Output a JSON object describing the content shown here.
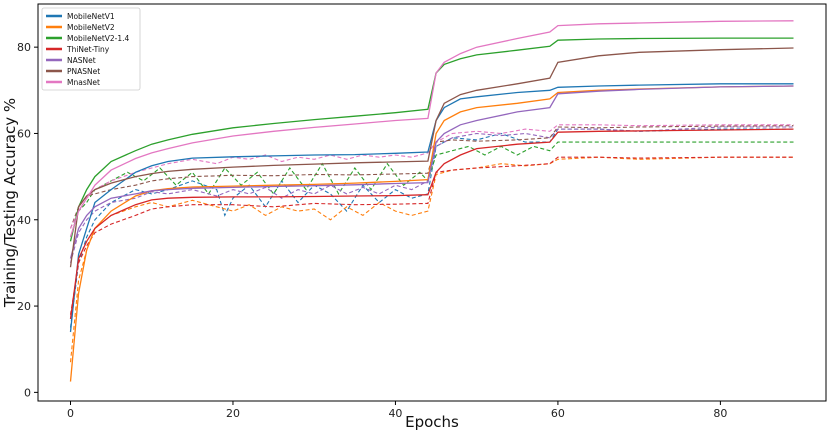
{
  "chart_data": {
    "type": "line",
    "title": "",
    "xlabel": "Epochs",
    "ylabel": "Training/Testing Accuracy %",
    "xlim": [
      -4,
      93
    ],
    "ylim": [
      -2,
      90
    ],
    "xticks": [
      0,
      20,
      40,
      60,
      80
    ],
    "yticks": [
      0,
      20,
      40,
      60,
      80
    ],
    "grid": false,
    "legend_position": "top-left",
    "line_styles": {
      "train": "solid",
      "test": "dashed"
    },
    "series": [
      {
        "name": "MobileNetV1",
        "color": "#1f77b4",
        "train": {
          "x": [
            0,
            1,
            2,
            3,
            5,
            8,
            10,
            12,
            15,
            20,
            25,
            30,
            35,
            40,
            44,
            45,
            46,
            48,
            50,
            55,
            59,
            60,
            65,
            70,
            80,
            89
          ],
          "y": [
            14,
            32,
            38,
            44,
            47,
            51,
            52.5,
            53.5,
            54.3,
            54.6,
            54.8,
            55,
            55.1,
            55.4,
            55.7,
            63,
            66,
            68,
            68.5,
            69.5,
            70,
            70.7,
            71,
            71.2,
            71.5,
            71.5
          ]
        },
        "test": {
          "x": [
            0,
            1,
            2,
            3,
            5,
            8,
            10,
            12,
            15,
            18,
            19,
            20,
            22,
            24,
            26,
            28,
            30,
            32,
            34,
            36,
            38,
            40,
            42,
            44,
            45,
            47,
            50,
            53,
            56,
            59,
            60,
            65,
            70,
            80,
            89
          ],
          "y": [
            15,
            30,
            36,
            40,
            44,
            47,
            46,
            47,
            49,
            47,
            41,
            45,
            48,
            43,
            49,
            44,
            48,
            46,
            42,
            48,
            44,
            47,
            45,
            46,
            57,
            59,
            58.5,
            60,
            58,
            58,
            61,
            61,
            60.5,
            61,
            61
          ]
        }
      },
      {
        "name": "MobileNetV2",
        "color": "#ff7f0e",
        "train": {
          "x": [
            0,
            1,
            2,
            3,
            5,
            8,
            10,
            12,
            15,
            20,
            25,
            30,
            35,
            40,
            44,
            45,
            46,
            48,
            50,
            55,
            59,
            60,
            65,
            70,
            80,
            89
          ],
          "y": [
            2.5,
            23,
            33,
            38,
            42,
            45.5,
            46.7,
            47.2,
            47.6,
            47.8,
            48,
            48.2,
            48.5,
            48.9,
            49.3,
            60,
            63,
            65,
            66,
            67,
            68,
            69.5,
            70,
            70.3,
            70.8,
            71
          ]
        },
        "test": {
          "x": [
            0,
            1,
            2,
            3,
            5,
            8,
            10,
            12,
            15,
            18,
            20,
            22,
            24,
            26,
            28,
            30,
            32,
            34,
            36,
            38,
            40,
            42,
            44,
            45,
            47,
            50,
            53,
            56,
            59,
            60,
            65,
            70,
            80,
            89
          ],
          "y": [
            7,
            26,
            33,
            38,
            41,
            43,
            44,
            43,
            44.5,
            43,
            42,
            43.5,
            41,
            43,
            42,
            42.5,
            40,
            43,
            41,
            44,
            42,
            41,
            42,
            50.5,
            51.5,
            52,
            53,
            52.5,
            53,
            54,
            54.5,
            54,
            54.5,
            54.5
          ]
        }
      },
      {
        "name": "MobileNetV2-1.4",
        "color": "#2ca02c",
        "train": {
          "x": [
            0,
            1,
            2,
            3,
            5,
            8,
            10,
            12,
            15,
            20,
            25,
            30,
            35,
            40,
            44,
            45,
            46,
            48,
            50,
            55,
            59,
            60,
            65,
            70,
            80,
            89
          ],
          "y": [
            35,
            43,
            47,
            50,
            53.5,
            56,
            57.5,
            58.5,
            59.8,
            61.3,
            62.3,
            63.2,
            64,
            64.8,
            65.6,
            74,
            76,
            77.3,
            78.2,
            79.3,
            80.2,
            81.6,
            81.9,
            82,
            82.1,
            82.1
          ]
        },
        "test": {
          "x": [
            0,
            1,
            2,
            3,
            5,
            7,
            9,
            11,
            13,
            15,
            17,
            19,
            21,
            23,
            25,
            27,
            29,
            31,
            33,
            35,
            37,
            39,
            41,
            43,
            44,
            45,
            47,
            49,
            51,
            53,
            55,
            57,
            59,
            60,
            65,
            70,
            80,
            89
          ],
          "y": [
            36,
            42,
            44,
            47,
            49,
            51,
            49,
            52,
            48,
            51,
            46,
            52,
            48,
            51,
            46,
            52,
            47,
            53,
            46,
            52,
            47,
            53,
            48,
            51,
            49,
            55,
            56,
            57,
            55,
            57,
            55,
            57,
            56,
            58,
            58,
            58,
            58,
            58
          ]
        }
      },
      {
        "name": "ThiNet-Tiny",
        "color": "#d62728",
        "train": {
          "x": [
            0,
            1,
            2,
            3,
            5,
            8,
            10,
            12,
            15,
            20,
            25,
            30,
            35,
            40,
            44,
            45,
            46,
            48,
            50,
            55,
            59,
            60,
            65,
            70,
            80,
            89
          ],
          "y": [
            17,
            31,
            35,
            38,
            41,
            43.5,
            44.6,
            45,
            45.2,
            45.3,
            45.3,
            45.4,
            45.5,
            45.6,
            45.8,
            51,
            53,
            55,
            56.5,
            57.5,
            58,
            60.3,
            60.5,
            60.6,
            60.8,
            61
          ]
        },
        "test": {
          "x": [
            0,
            1,
            2,
            3,
            5,
            8,
            10,
            12,
            15,
            20,
            25,
            30,
            35,
            40,
            44,
            45,
            47,
            50,
            55,
            59,
            60,
            65,
            70,
            80,
            89
          ],
          "y": [
            18,
            30,
            34,
            37,
            39,
            41,
            42.5,
            43,
            43.5,
            43.5,
            43,
            43.8,
            43.5,
            43.6,
            43.8,
            51,
            51.5,
            52,
            52.5,
            53,
            54.5,
            54.5,
            54.3,
            54.5,
            54.5
          ]
        }
      },
      {
        "name": "NASNet",
        "color": "#9467bd",
        "train": {
          "x": [
            0,
            1,
            2,
            3,
            5,
            8,
            10,
            12,
            15,
            20,
            25,
            30,
            35,
            40,
            44,
            45,
            46,
            48,
            50,
            55,
            59,
            60,
            65,
            70,
            80,
            89
          ],
          "y": [
            31,
            38,
            41,
            43,
            45,
            46,
            46.7,
            47,
            47.3,
            47.5,
            47.7,
            47.9,
            48.1,
            48.4,
            48.6,
            58,
            60,
            62,
            63,
            65,
            66,
            69.2,
            69.8,
            70.2,
            70.8,
            71
          ]
        },
        "test": {
          "x": [
            0,
            1,
            2,
            3,
            5,
            8,
            10,
            12,
            15,
            18,
            20,
            22,
            24,
            26,
            28,
            30,
            32,
            34,
            36,
            38,
            40,
            42,
            44,
            45,
            47,
            50,
            53,
            56,
            59,
            60,
            65,
            70,
            80,
            89
          ],
          "y": [
            30,
            37,
            40,
            42,
            44,
            45,
            46.5,
            46,
            47,
            45.5,
            47,
            46,
            47.5,
            45,
            47,
            46,
            48,
            46,
            47.5,
            46,
            48,
            47,
            49,
            57,
            59,
            60,
            59.5,
            60,
            59,
            61,
            61,
            60.5,
            61.5,
            61.5
          ]
        }
      },
      {
        "name": "PNASNet",
        "color": "#8c564b",
        "train": {
          "x": [
            0,
            1,
            2,
            3,
            5,
            8,
            10,
            12,
            15,
            20,
            25,
            30,
            35,
            40,
            44,
            45,
            46,
            48,
            50,
            55,
            59,
            60,
            65,
            70,
            80,
            89
          ],
          "y": [
            29,
            43,
            45.5,
            47,
            48.5,
            50,
            50.7,
            51.2,
            51.7,
            52.2,
            52.6,
            52.9,
            53.2,
            53.4,
            53.6,
            63,
            67,
            69,
            70,
            71.5,
            72.8,
            76.5,
            78,
            78.8,
            79.4,
            79.8
          ]
        },
        "test": {
          "x": [
            0,
            1,
            2,
            3,
            5,
            8,
            10,
            12,
            15,
            20,
            25,
            30,
            35,
            40,
            44,
            45,
            47,
            50,
            55,
            59,
            60,
            65,
            70,
            80,
            89
          ],
          "y": [
            38,
            43,
            45.5,
            46,
            47,
            48,
            49,
            49.5,
            50,
            50.3,
            50.2,
            50.5,
            50.4,
            50.6,
            50.8,
            58,
            58.5,
            58.2,
            58.5,
            59,
            61.5,
            61.3,
            61.5,
            61.7,
            61.8
          ]
        }
      },
      {
        "name": "MnasNet",
        "color": "#e377c2",
        "train": {
          "x": [
            0,
            1,
            2,
            3,
            5,
            8,
            10,
            12,
            15,
            20,
            25,
            30,
            35,
            40,
            44,
            45,
            46,
            48,
            50,
            55,
            59,
            60,
            65,
            70,
            80,
            89
          ],
          "y": [
            36,
            42,
            45,
            48,
            51.5,
            54.2,
            55.5,
            56.5,
            57.8,
            59.4,
            60.5,
            61.4,
            62.2,
            63,
            63.5,
            74,
            76.5,
            78.5,
            80,
            82,
            83.5,
            85,
            85.4,
            85.6,
            86,
            86.1
          ]
        },
        "test": {
          "x": [
            0,
            1,
            2,
            3,
            5,
            8,
            10,
            12,
            15,
            18,
            20,
            22,
            24,
            26,
            28,
            30,
            32,
            34,
            36,
            38,
            40,
            42,
            44,
            45,
            47,
            50,
            53,
            56,
            59,
            60,
            65,
            70,
            80,
            89
          ],
          "y": [
            38,
            42,
            45,
            47,
            49,
            51,
            52,
            53,
            54,
            53,
            54.5,
            54,
            55,
            53.5,
            54.5,
            54,
            55,
            54,
            55,
            54.5,
            55,
            54.5,
            55.5,
            58,
            60,
            60.5,
            60,
            61,
            60.5,
            62,
            62,
            61.8,
            62,
            62
          ]
        }
      }
    ]
  }
}
